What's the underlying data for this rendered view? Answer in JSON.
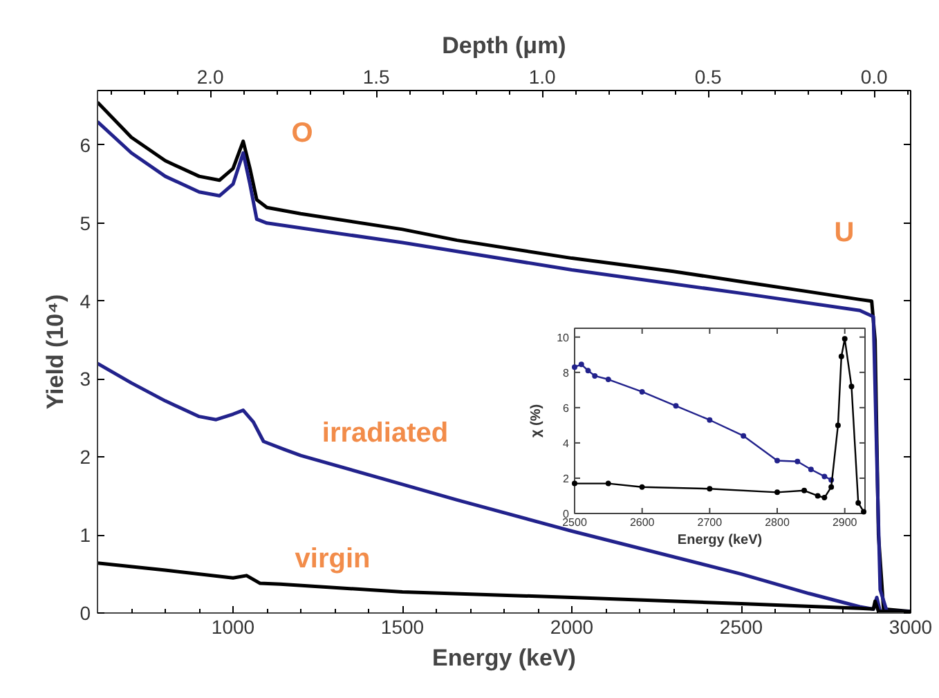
{
  "chart_data": [
    {
      "type": "line",
      "xlabel": "Energy (keV)",
      "ylabel": "Yield (10⁴)",
      "x2label": "Depth (μm)",
      "xlim": [
        600,
        3000
      ],
      "ylim": [
        0,
        6.7
      ],
      "xticks": [
        1000,
        1500,
        2000,
        2500,
        3000
      ],
      "yticks": [
        0,
        1,
        2,
        3,
        4,
        5,
        6
      ],
      "x2lim": [
        2.34,
        -0.11
      ],
      "x2ticks": [
        {
          "value": 2.0,
          "label": "2.0"
        },
        {
          "value": 1.5,
          "label": "1.5"
        },
        {
          "value": 1.0,
          "label": "1.0"
        },
        {
          "value": 0.5,
          "label": "0.5"
        },
        {
          "value": 0.0,
          "label": "0.0"
        }
      ],
      "grid": false,
      "series": [
        {
          "color": "#000000",
          "x": [
            600,
            700,
            800,
            900,
            960,
            1000,
            1030,
            1050,
            1070,
            1100,
            1200,
            1500,
            1661,
            2000,
            2300,
            2500,
            2700,
            2850,
            2885,
            2895,
            2905,
            2920,
            3000
          ],
          "values": [
            6.55,
            6.1,
            5.8,
            5.6,
            5.55,
            5.7,
            6.05,
            5.7,
            5.3,
            5.2,
            5.12,
            4.92,
            4.78,
            4.55,
            4.38,
            4.25,
            4.12,
            4.02,
            4.0,
            3.5,
            1.0,
            0.05,
            0.02
          ]
        },
        {
          "color": "#22228c",
          "x": [
            600,
            700,
            800,
            900,
            960,
            1000,
            1030,
            1050,
            1070,
            1100,
            1500,
            2000,
            2500,
            2850,
            2890,
            2900,
            2910,
            2930,
            3000
          ],
          "values": [
            6.3,
            5.9,
            5.6,
            5.4,
            5.35,
            5.5,
            5.9,
            5.5,
            5.05,
            5.0,
            4.75,
            4.4,
            4.1,
            3.88,
            3.8,
            2.0,
            0.3,
            0.02,
            0.02
          ]
        },
        {
          "color": "#22228c",
          "x": [
            600,
            700,
            800,
            900,
            950,
            1000,
            1030,
            1060,
            1090,
            1150,
            1200,
            1500,
            1661,
            2000,
            2500,
            2700,
            2850,
            2890,
            2900,
            2910,
            3000
          ],
          "values": [
            3.2,
            2.95,
            2.72,
            2.52,
            2.48,
            2.55,
            2.6,
            2.45,
            2.2,
            2.1,
            2.02,
            1.65,
            1.45,
            1.05,
            0.5,
            0.25,
            0.08,
            0.05,
            0.2,
            0.02,
            0.02
          ]
        },
        {
          "color": "#000000",
          "x": [
            600,
            800,
            1000,
            1040,
            1080,
            1140,
            1500,
            2000,
            2500,
            2850,
            2890,
            2895,
            2905,
            3000
          ],
          "values": [
            0.64,
            0.55,
            0.45,
            0.48,
            0.38,
            0.37,
            0.27,
            0.2,
            0.12,
            0.06,
            0.05,
            0.15,
            0.02,
            0.02
          ]
        }
      ],
      "annotations": [
        "O",
        "U",
        "irradiated",
        "virgin"
      ]
    },
    {
      "type": "line",
      "xlabel": "Energy (keV)",
      "ylabel": "χ (%)",
      "xlim": [
        2500,
        2930
      ],
      "ylim": [
        0,
        10.5
      ],
      "xticks": [
        2500,
        2600,
        2700,
        2800,
        2900
      ],
      "yticks": [
        0,
        2,
        4,
        6,
        8,
        10
      ],
      "marker": "circle",
      "series": [
        {
          "color": "#22228c",
          "x": [
            2500,
            2510,
            2520,
            2530,
            2550,
            2600,
            2650,
            2700,
            2750,
            2800,
            2830,
            2850,
            2870,
            2880
          ],
          "values": [
            8.3,
            8.45,
            8.1,
            7.8,
            7.6,
            6.9,
            6.1,
            5.3,
            4.4,
            3.0,
            2.95,
            2.5,
            2.1,
            1.9
          ]
        },
        {
          "color": "#000000",
          "x": [
            2500,
            2550,
            2600,
            2700,
            2800,
            2840,
            2860,
            2870,
            2880,
            2890,
            2895,
            2900,
            2910,
            2920,
            2928
          ],
          "values": [
            1.7,
            1.7,
            1.5,
            1.4,
            1.2,
            1.3,
            1.0,
            0.9,
            1.5,
            5.0,
            8.9,
            9.9,
            7.2,
            0.6,
            0.1
          ]
        }
      ]
    }
  ]
}
